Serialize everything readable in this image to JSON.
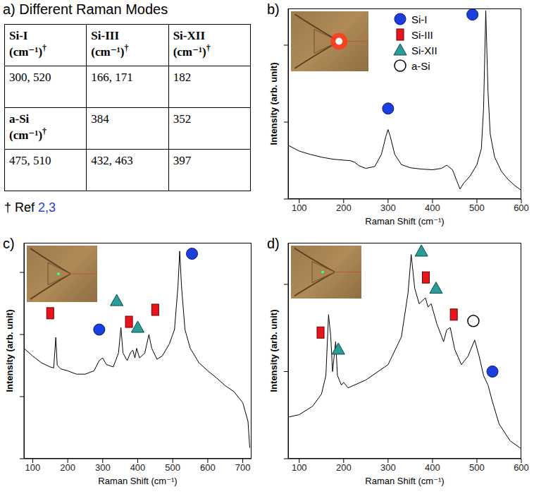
{
  "table_panel": {
    "title": "a) Different Raman Modes",
    "header": [
      "Si-I (cm⁻¹)†",
      "Si-III (cm⁻¹)†",
      "Si-XII (cm⁻¹)†"
    ],
    "rows": [
      [
        "300, 520",
        "166, 171",
        "182"
      ],
      [
        "a-Si (cm⁻¹)†",
        "384",
        "352"
      ],
      [
        "475, 510",
        "432, 463",
        "397"
      ]
    ],
    "footnote": "† Ref",
    "footnote_refs": "2,3"
  },
  "chart_data": [
    {
      "type": "line",
      "title": "b)",
      "x_label": "Raman Shift (cm⁻¹)",
      "y_label": "Intensity (arb. unit)",
      "xlim": [
        75,
        600
      ],
      "xticks": [
        100,
        200,
        300,
        400,
        500,
        600
      ],
      "ylim": [
        100,
        30000
      ],
      "yticks": [
        100,
        1000,
        10000
      ],
      "log": "y",
      "tick_labels": "x",
      "legend": "top",
      "series": [
        {
          "type": "line",
          "color": "#000000",
          "x": [
            75,
            100,
            125,
            150,
            175,
            200,
            215,
            225,
            235,
            250,
            270,
            285,
            295,
            300,
            305,
            315,
            330,
            350,
            375,
            400,
            420,
            432,
            445,
            455,
            462,
            470,
            485,
            500,
            510,
            515,
            520,
            525,
            530,
            540,
            555,
            570,
            585,
            600
          ],
          "values": [
            500,
            420,
            380,
            350,
            330,
            320,
            315,
            300,
            270,
            250,
            265,
            380,
            650,
            800,
            650,
            380,
            280,
            255,
            245,
            240,
            250,
            275,
            240,
            170,
            135,
            160,
            200,
            280,
            450,
            1500,
            28000,
            2500,
            700,
            350,
            230,
            180,
            150,
            130
          ]
        },
        {
          "name": "Si-I",
          "type": "scatter",
          "color": "#1c3de0",
          "marker": "circle",
          "x": [
            300,
            490
          ],
          "values": [
            1500,
            25000
          ]
        },
        {
          "name": "Si-III",
          "type": "scatter",
          "color": "#e8161b",
          "marker": "square",
          "x": [],
          "values": []
        },
        {
          "name": "Si-XII",
          "type": "scatter",
          "color": "#2a9d9a",
          "marker": "triangle",
          "x": [],
          "values": []
        },
        {
          "name": "a-Si",
          "type": "scatter",
          "color": "#000000",
          "marker": "open_circle",
          "x": [],
          "values": []
        }
      ]
    },
    {
      "type": "line",
      "title": "c)",
      "x_label": "Raman Shift (cm⁻¹)",
      "y_label": "Intensity (arb. unit)",
      "xlim": [
        75,
        725
      ],
      "xticks": [
        100,
        200,
        300,
        400,
        500,
        600,
        700
      ],
      "ylim": [
        10,
        30000
      ],
      "yticks": [
        10,
        100,
        1000,
        10000
      ],
      "log": "y",
      "tick_labels": "x",
      "series": [
        {
          "type": "line",
          "color": "#000000",
          "x": [
            75,
            100,
            125,
            150,
            160,
            166,
            170,
            180,
            200,
            225,
            250,
            275,
            290,
            300,
            310,
            330,
            345,
            352,
            358,
            370,
            380,
            386,
            392,
            397,
            405,
            420,
            432,
            440,
            455,
            470,
            490,
            505,
            515,
            520,
            525,
            535,
            550,
            575,
            600,
            625,
            650,
            675,
            700,
            715,
            720
          ],
          "values": [
            600,
            450,
            350,
            300,
            290,
            900,
            320,
            280,
            260,
            230,
            230,
            260,
            380,
            420,
            330,
            300,
            500,
            1300,
            500,
            380,
            520,
            560,
            420,
            600,
            420,
            500,
            1000,
            600,
            400,
            450,
            700,
            1200,
            6000,
            22000,
            6000,
            1200,
            600,
            350,
            260,
            200,
            150,
            120,
            80,
            40,
            15
          ]
        },
        {
          "name": "Si-I",
          "type": "scatter",
          "color": "#1c3de0",
          "marker": "circle",
          "x": [
            290,
            555
          ],
          "values": [
            1200,
            20000
          ]
        },
        {
          "name": "Si-III",
          "type": "scatter",
          "color": "#e8161b",
          "marker": "square",
          "x": [
            150,
            375,
            450
          ],
          "values": [
            2200,
            1600,
            2500
          ]
        },
        {
          "name": "Si-XII",
          "type": "scatter",
          "color": "#2a9d9a",
          "marker": "triangle",
          "x": [
            340,
            400
          ],
          "values": [
            3500,
            1300
          ]
        }
      ]
    },
    {
      "type": "line",
      "title": "d)",
      "x_label": "Raman Shift (cm⁻¹)",
      "y_label": "Intensity (arb. unit)",
      "xlim": [
        75,
        600
      ],
      "xticks": [
        100,
        200,
        300,
        400,
        500,
        600
      ],
      "ylim": [
        100,
        30000
      ],
      "yticks": [
        100,
        1000,
        10000
      ],
      "log": "y",
      "tick_labels": "x",
      "series": [
        {
          "type": "line",
          "color": "#000000",
          "x": [
            75,
            100,
            130,
            150,
            160,
            166,
            171,
            175,
            182,
            186,
            195,
            200,
            210,
            250,
            300,
            330,
            345,
            352,
            360,
            370,
            384,
            390,
            397,
            410,
            425,
            432,
            440,
            450,
            465,
            480,
            495,
            505,
            515,
            525,
            535,
            550,
            575,
            600
          ],
          "values": [
            300,
            320,
            400,
            550,
            900,
            4500,
            2500,
            1000,
            2200,
            900,
            700,
            750,
            650,
            800,
            1200,
            2500,
            8000,
            22000,
            9000,
            6000,
            7000,
            5500,
            6000,
            3500,
            2200,
            3000,
            3200,
            1800,
            1200,
            1500,
            2300,
            1500,
            900,
            700,
            450,
            250,
            160,
            130
          ]
        },
        {
          "name": "Si-I",
          "type": "scatter",
          "color": "#1c3de0",
          "marker": "circle",
          "x": [
            535
          ],
          "values": [
            1000
          ]
        },
        {
          "name": "Si-III",
          "type": "scatter",
          "color": "#e8161b",
          "marker": "square",
          "x": [
            148,
            385,
            448
          ],
          "values": [
            2800,
            12000,
            4500
          ]
        },
        {
          "name": "Si-XII",
          "type": "scatter",
          "color": "#2a9d9a",
          "marker": "triangle",
          "x": [
            188,
            375,
            408
          ],
          "values": [
            1800,
            24000,
            9000
          ]
        },
        {
          "name": "a-Si",
          "type": "scatter",
          "color": "#000000",
          "marker": "open_circle",
          "x": [
            492
          ],
          "values": [
            3800
          ]
        }
      ]
    }
  ]
}
